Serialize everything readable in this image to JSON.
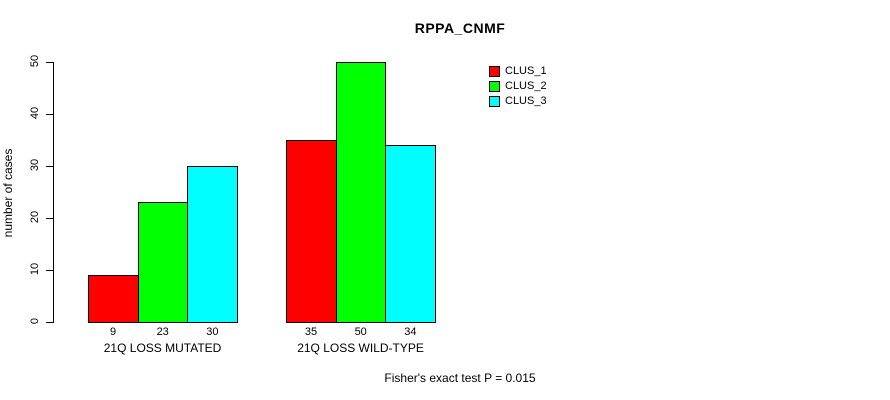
{
  "title": "RPPA_CNMF",
  "footer": "Fisher's exact test P = 0.015",
  "chart_data": {
    "type": "bar",
    "title": "RPPA_CNMF",
    "xlabel": "",
    "ylabel": "number of cases",
    "ylim": [
      0,
      50
    ],
    "yticks": [
      0,
      10,
      20,
      30,
      40,
      50
    ],
    "grid": false,
    "legend_position": "top-right",
    "categories": [
      "21Q LOSS MUTATED",
      "21Q LOSS WILD-TYPE"
    ],
    "series": [
      {
        "name": "CLUS_1",
        "color": "#ff0000",
        "values": [
          9,
          35
        ]
      },
      {
        "name": "CLUS_2",
        "color": "#00ff00",
        "values": [
          23,
          50
        ]
      },
      {
        "name": "CLUS_3",
        "color": "#00ffff",
        "values": [
          30,
          34
        ]
      }
    ],
    "bar_value_labels": [
      [
        9,
        23,
        30
      ],
      [
        35,
        50,
        34
      ]
    ],
    "annotation": "Fisher's exact test P = 0.015"
  }
}
